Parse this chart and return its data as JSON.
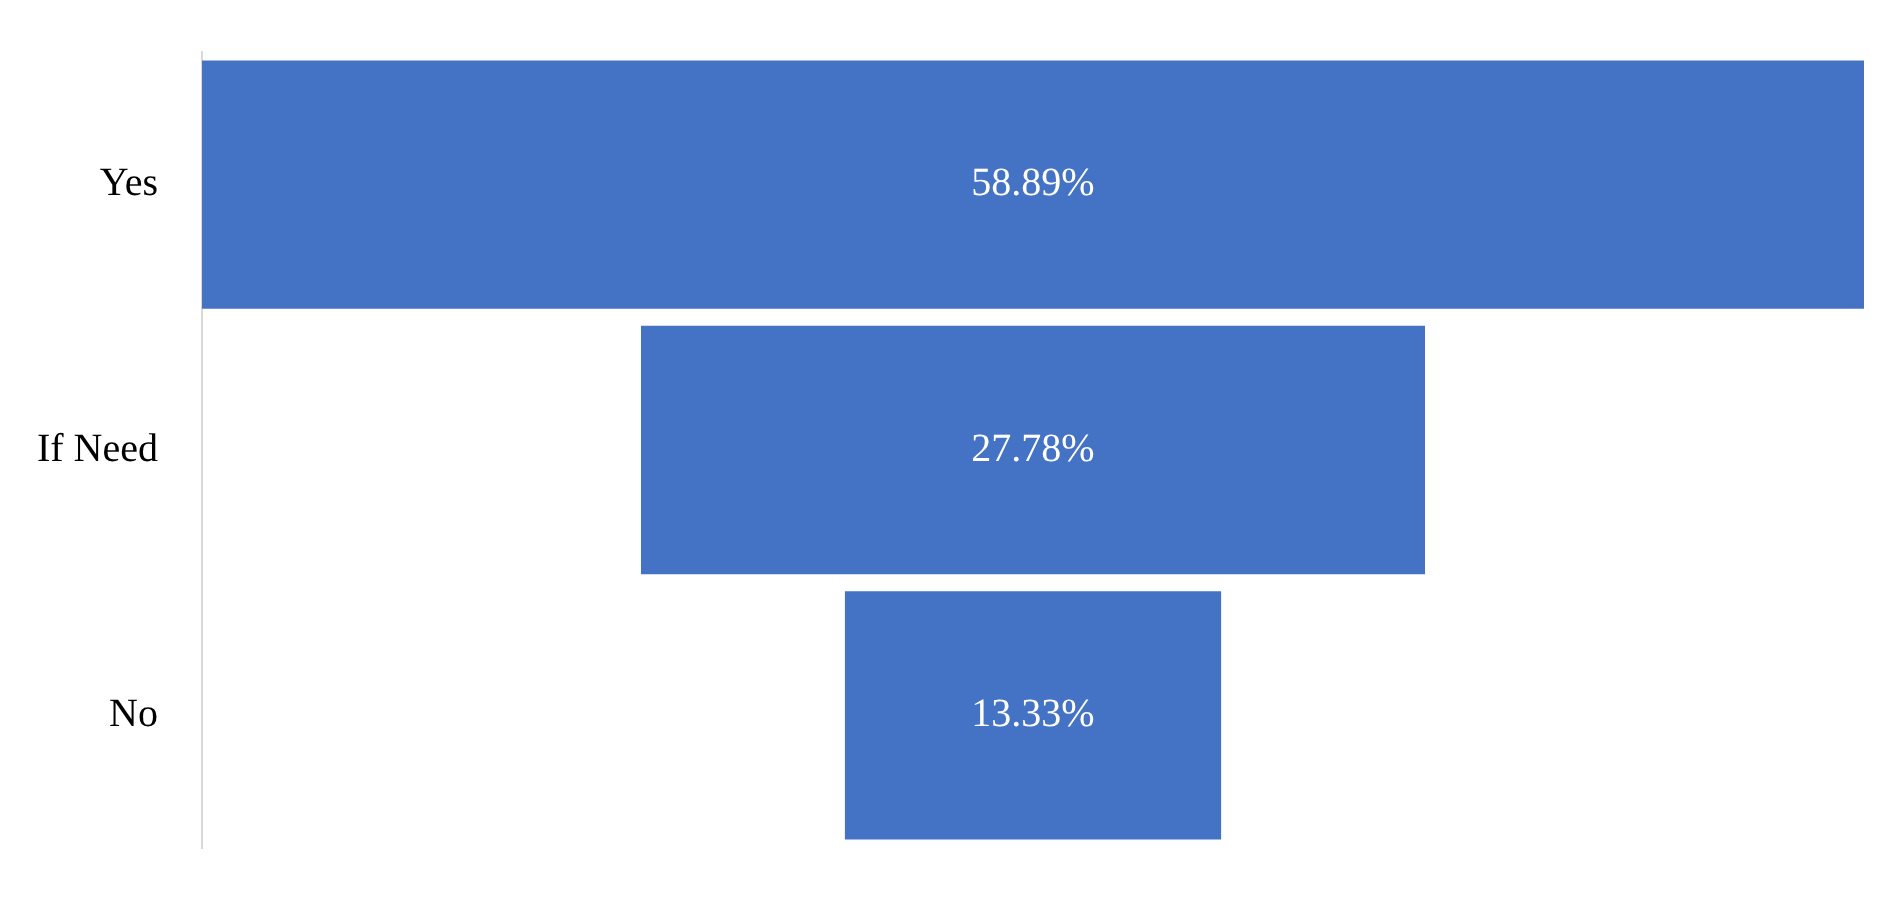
{
  "chart_data": {
    "type": "other",
    "categories": [
      "Yes",
      "If Need",
      "No"
    ],
    "values": [
      58.89,
      27.78,
      13.33
    ],
    "value_labels": [
      "58.89%",
      "27.78%",
      "13.33%"
    ],
    "color": "#4472c4"
  }
}
